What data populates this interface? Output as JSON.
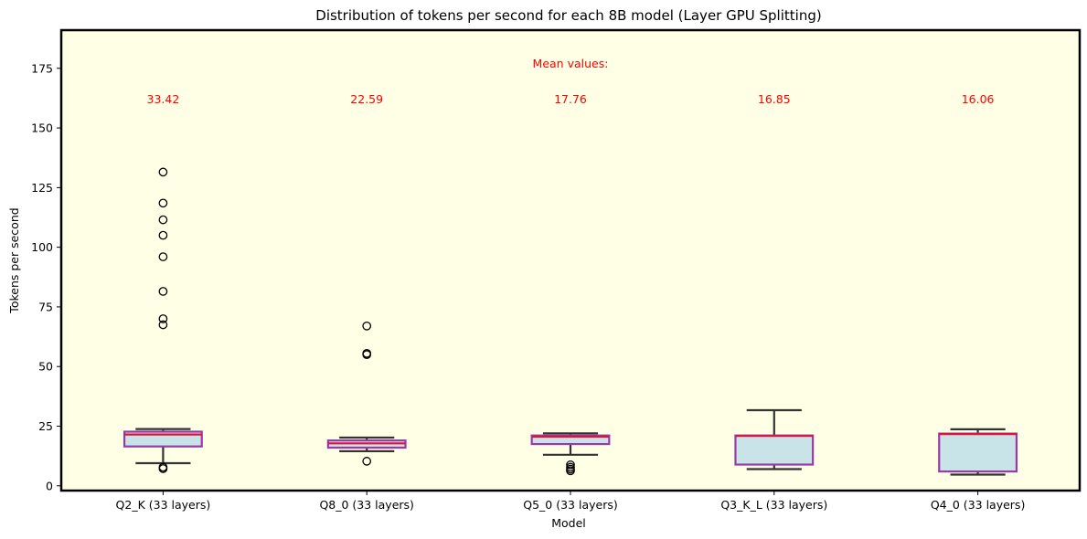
{
  "chart_data": {
    "type": "box",
    "title": "Distribution of tokens per second for each 8B model (Layer GPU Splitting)",
    "xlabel": "Model",
    "ylabel": "Tokens per second",
    "ylim": [
      -2,
      191
    ],
    "yticks": [
      0,
      25,
      50,
      75,
      100,
      125,
      150,
      175
    ],
    "grid": false,
    "background_color": "#ffffe6",
    "box_fill_color": "#c9e4e8",
    "box_edge_color": "#9b3aa6",
    "median_color": "#dc143c",
    "whisker_color": "#333333",
    "mean_color": "#ff0000",
    "mean_header": "Mean values:",
    "mean_header_y": 177,
    "mean_label_y": 162,
    "categories": [
      "Q2_K (33 layers)",
      "Q8_0 (33 layers)",
      "Q5_0 (33 layers)",
      "Q3_K_L (33 layers)",
      "Q4_0 (33 layers)"
    ],
    "means": [
      "33.42",
      "22.59",
      "17.76",
      "16.85",
      "16.06"
    ],
    "boxes": [
      {
        "whisker_low": 9.5,
        "q1": 16.5,
        "median": 21.5,
        "q3": 22.7,
        "whisker_high": 23.8,
        "outliers": [
          7.2,
          7.8,
          67.5,
          70,
          81.5,
          96,
          105,
          111.5,
          118.5,
          131.5
        ]
      },
      {
        "whisker_low": 14.5,
        "q1": 16.0,
        "median": 17.8,
        "q3": 19.0,
        "whisker_high": 20.2,
        "outliers": [
          10.3,
          55,
          55.5,
          67
        ]
      },
      {
        "whisker_low": 13.0,
        "q1": 17.5,
        "median": 20.6,
        "q3": 21.1,
        "whisker_high": 22.0,
        "outliers": [
          6.3,
          7.0,
          7.8,
          8.8
        ]
      },
      {
        "whisker_low": 7.0,
        "q1": 8.9,
        "median": 20.9,
        "q3": 21.1,
        "whisker_high": 31.7,
        "outliers": []
      },
      {
        "whisker_low": 4.7,
        "q1": 6.0,
        "median": 21.7,
        "q3": 21.9,
        "whisker_high": 23.7,
        "outliers": []
      }
    ]
  }
}
